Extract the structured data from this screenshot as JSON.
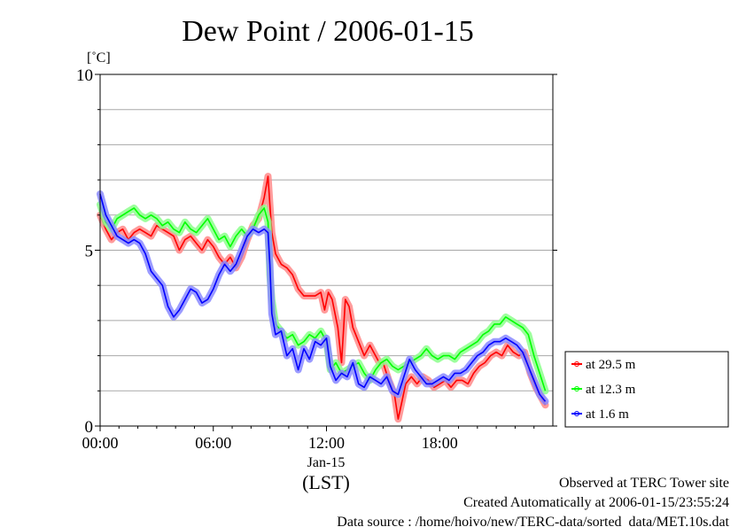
{
  "chart_data": {
    "type": "line",
    "title": "Dew Point / 2006-01-15",
    "ylabel": "[˚C]",
    "xlabel": "(LST)",
    "x_date_label": "Jan-15",
    "ylim": [
      0,
      10
    ],
    "yticks": [
      "0",
      "5",
      "10"
    ],
    "xlim": [
      0,
      24
    ],
    "xticks": [
      "00:00",
      "06:00",
      "12:00",
      "18:00"
    ],
    "grid": true,
    "legend_position": "bottom-right outside",
    "series": [
      {
        "name": "at 29.5 m",
        "color": "#ff0000",
        "points": [
          [
            0,
            6.0
          ],
          [
            0.3,
            5.6
          ],
          [
            0.6,
            5.3
          ],
          [
            0.9,
            5.5
          ],
          [
            1.2,
            5.6
          ],
          [
            1.5,
            5.3
          ],
          [
            1.8,
            5.5
          ],
          [
            2.1,
            5.6
          ],
          [
            2.4,
            5.5
          ],
          [
            2.7,
            5.4
          ],
          [
            3.0,
            5.7
          ],
          [
            3.3,
            5.6
          ],
          [
            3.6,
            5.5
          ],
          [
            3.9,
            5.4
          ],
          [
            4.2,
            5.0
          ],
          [
            4.5,
            5.3
          ],
          [
            4.8,
            5.4
          ],
          [
            5.1,
            5.2
          ],
          [
            5.4,
            5.0
          ],
          [
            5.7,
            5.3
          ],
          [
            6.0,
            5.1
          ],
          [
            6.3,
            4.8
          ],
          [
            6.6,
            4.6
          ],
          [
            6.9,
            4.8
          ],
          [
            7.2,
            4.5
          ],
          [
            7.5,
            4.8
          ],
          [
            7.8,
            5.3
          ],
          [
            8.1,
            5.7
          ],
          [
            8.4,
            5.9
          ],
          [
            8.7,
            6.5
          ],
          [
            8.9,
            7.1
          ],
          [
            9.0,
            6.3
          ],
          [
            9.1,
            5.5
          ],
          [
            9.3,
            4.9
          ],
          [
            9.6,
            4.6
          ],
          [
            9.9,
            4.5
          ],
          [
            10.2,
            4.3
          ],
          [
            10.5,
            3.9
          ],
          [
            10.8,
            3.7
          ],
          [
            11.1,
            3.7
          ],
          [
            11.4,
            3.7
          ],
          [
            11.7,
            3.8
          ],
          [
            11.9,
            3.3
          ],
          [
            12.1,
            3.8
          ],
          [
            12.3,
            3.6
          ],
          [
            12.6,
            2.8
          ],
          [
            12.8,
            1.8
          ],
          [
            13.0,
            3.6
          ],
          [
            13.2,
            3.4
          ],
          [
            13.4,
            2.8
          ],
          [
            13.7,
            2.4
          ],
          [
            14.0,
            2.0
          ],
          [
            14.3,
            2.3
          ],
          [
            14.5,
            2.1
          ],
          [
            14.8,
            1.8
          ],
          [
            15.0,
            1.8
          ],
          [
            15.3,
            1.3
          ],
          [
            15.6,
            0.9
          ],
          [
            15.8,
            0.2
          ],
          [
            16.0,
            0.7
          ],
          [
            16.2,
            1.2
          ],
          [
            16.5,
            1.4
          ],
          [
            16.8,
            1.2
          ],
          [
            17.1,
            1.4
          ],
          [
            17.4,
            1.3
          ],
          [
            17.7,
            1.1
          ],
          [
            18.0,
            1.2
          ],
          [
            18.3,
            1.3
          ],
          [
            18.6,
            1.1
          ],
          [
            18.9,
            1.3
          ],
          [
            19.2,
            1.3
          ],
          [
            19.5,
            1.2
          ],
          [
            19.8,
            1.5
          ],
          [
            20.1,
            1.7
          ],
          [
            20.4,
            1.8
          ],
          [
            20.7,
            2.0
          ],
          [
            21.0,
            2.1
          ],
          [
            21.3,
            2.0
          ],
          [
            21.6,
            2.3
          ],
          [
            21.9,
            2.1
          ],
          [
            22.2,
            2.0
          ],
          [
            22.5,
            2.1
          ],
          [
            22.8,
            1.5
          ],
          [
            23.1,
            1.1
          ],
          [
            23.4,
            0.8
          ],
          [
            23.6,
            0.6
          ]
        ]
      },
      {
        "name": "at 12.3 m",
        "color": "#00ff00",
        "points": [
          [
            0,
            6.3
          ],
          [
            0.3,
            5.8
          ],
          [
            0.6,
            5.6
          ],
          [
            0.9,
            5.9
          ],
          [
            1.2,
            6.0
          ],
          [
            1.5,
            6.1
          ],
          [
            1.8,
            6.2
          ],
          [
            2.1,
            6.0
          ],
          [
            2.4,
            5.9
          ],
          [
            2.7,
            6.0
          ],
          [
            3.0,
            5.9
          ],
          [
            3.3,
            5.7
          ],
          [
            3.6,
            5.8
          ],
          [
            3.9,
            5.6
          ],
          [
            4.2,
            5.5
          ],
          [
            4.5,
            5.8
          ],
          [
            4.8,
            5.6
          ],
          [
            5.1,
            5.5
          ],
          [
            5.4,
            5.7
          ],
          [
            5.7,
            5.9
          ],
          [
            6.0,
            5.6
          ],
          [
            6.3,
            5.3
          ],
          [
            6.6,
            5.4
          ],
          [
            6.9,
            5.1
          ],
          [
            7.2,
            5.4
          ],
          [
            7.5,
            5.6
          ],
          [
            7.8,
            5.4
          ],
          [
            8.1,
            5.6
          ],
          [
            8.4,
            6.0
          ],
          [
            8.7,
            6.2
          ],
          [
            8.9,
            5.8
          ],
          [
            9.0,
            4.3
          ],
          [
            9.1,
            3.6
          ],
          [
            9.3,
            2.9
          ],
          [
            9.6,
            2.7
          ],
          [
            9.9,
            2.5
          ],
          [
            10.2,
            2.6
          ],
          [
            10.5,
            2.3
          ],
          [
            10.8,
            2.4
          ],
          [
            11.1,
            2.6
          ],
          [
            11.4,
            2.5
          ],
          [
            11.7,
            2.7
          ],
          [
            12.0,
            2.4
          ],
          [
            12.2,
            1.6
          ],
          [
            12.5,
            1.8
          ],
          [
            12.8,
            1.5
          ],
          [
            13.1,
            1.6
          ],
          [
            13.4,
            1.7
          ],
          [
            13.7,
            1.8
          ],
          [
            14.0,
            1.5
          ],
          [
            14.3,
            1.3
          ],
          [
            14.6,
            1.6
          ],
          [
            14.9,
            1.8
          ],
          [
            15.2,
            1.9
          ],
          [
            15.5,
            1.7
          ],
          [
            15.8,
            1.6
          ],
          [
            16.1,
            1.7
          ],
          [
            16.4,
            1.8
          ],
          [
            16.7,
            1.9
          ],
          [
            17.0,
            2.0
          ],
          [
            17.3,
            2.2
          ],
          [
            17.6,
            2.0
          ],
          [
            17.9,
            1.9
          ],
          [
            18.2,
            2.0
          ],
          [
            18.5,
            2.0
          ],
          [
            18.8,
            1.9
          ],
          [
            19.1,
            2.1
          ],
          [
            19.4,
            2.2
          ],
          [
            19.7,
            2.3
          ],
          [
            20.0,
            2.4
          ],
          [
            20.3,
            2.6
          ],
          [
            20.6,
            2.7
          ],
          [
            20.9,
            2.9
          ],
          [
            21.2,
            2.9
          ],
          [
            21.5,
            3.1
          ],
          [
            21.8,
            3.0
          ],
          [
            22.1,
            2.9
          ],
          [
            22.4,
            2.8
          ],
          [
            22.7,
            2.6
          ],
          [
            23.0,
            2.0
          ],
          [
            23.3,
            1.5
          ],
          [
            23.6,
            1.0
          ]
        ]
      },
      {
        "name": "at 1.6 m",
        "color": "#0000ff",
        "points": [
          [
            0,
            6.6
          ],
          [
            0.3,
            6.0
          ],
          [
            0.6,
            5.7
          ],
          [
            0.9,
            5.4
          ],
          [
            1.2,
            5.3
          ],
          [
            1.5,
            5.2
          ],
          [
            1.8,
            5.3
          ],
          [
            2.1,
            5.2
          ],
          [
            2.4,
            4.9
          ],
          [
            2.7,
            4.4
          ],
          [
            3.0,
            4.2
          ],
          [
            3.3,
            4.0
          ],
          [
            3.6,
            3.4
          ],
          [
            3.9,
            3.1
          ],
          [
            4.2,
            3.3
          ],
          [
            4.5,
            3.6
          ],
          [
            4.8,
            3.9
          ],
          [
            5.1,
            3.8
          ],
          [
            5.4,
            3.5
          ],
          [
            5.7,
            3.6
          ],
          [
            6.0,
            3.9
          ],
          [
            6.3,
            4.3
          ],
          [
            6.6,
            4.6
          ],
          [
            6.9,
            4.4
          ],
          [
            7.2,
            4.6
          ],
          [
            7.5,
            5.0
          ],
          [
            7.8,
            5.4
          ],
          [
            8.1,
            5.6
          ],
          [
            8.4,
            5.5
          ],
          [
            8.7,
            5.6
          ],
          [
            8.9,
            5.5
          ],
          [
            9.0,
            4.6
          ],
          [
            9.1,
            3.2
          ],
          [
            9.3,
            2.6
          ],
          [
            9.6,
            2.7
          ],
          [
            9.9,
            2.0
          ],
          [
            10.2,
            2.2
          ],
          [
            10.5,
            1.6
          ],
          [
            10.8,
            2.2
          ],
          [
            11.1,
            1.9
          ],
          [
            11.4,
            2.4
          ],
          [
            11.7,
            2.3
          ],
          [
            12.0,
            2.5
          ],
          [
            12.2,
            1.7
          ],
          [
            12.5,
            1.3
          ],
          [
            12.8,
            1.5
          ],
          [
            13.1,
            1.4
          ],
          [
            13.4,
            1.8
          ],
          [
            13.7,
            1.2
          ],
          [
            14.0,
            1.1
          ],
          [
            14.3,
            1.4
          ],
          [
            14.6,
            1.3
          ],
          [
            14.9,
            1.2
          ],
          [
            15.2,
            1.4
          ],
          [
            15.5,
            1.0
          ],
          [
            15.8,
            0.9
          ],
          [
            16.1,
            1.4
          ],
          [
            16.4,
            1.9
          ],
          [
            16.7,
            1.6
          ],
          [
            17.0,
            1.4
          ],
          [
            17.3,
            1.2
          ],
          [
            17.6,
            1.2
          ],
          [
            17.9,
            1.3
          ],
          [
            18.2,
            1.4
          ],
          [
            18.5,
            1.3
          ],
          [
            18.8,
            1.5
          ],
          [
            19.1,
            1.5
          ],
          [
            19.4,
            1.6
          ],
          [
            19.7,
            1.8
          ],
          [
            20.0,
            2.0
          ],
          [
            20.3,
            2.1
          ],
          [
            20.6,
            2.3
          ],
          [
            20.9,
            2.4
          ],
          [
            21.2,
            2.4
          ],
          [
            21.5,
            2.5
          ],
          [
            21.8,
            2.4
          ],
          [
            22.1,
            2.3
          ],
          [
            22.4,
            2.1
          ],
          [
            22.7,
            1.7
          ],
          [
            23.0,
            1.3
          ],
          [
            23.3,
            0.9
          ],
          [
            23.6,
            0.7
          ]
        ]
      }
    ]
  },
  "footer": {
    "line1": "Observed at TERC Tower site",
    "line2": "Created Automatically at 2006-01-15/23:55:24",
    "line3": "Data source : /home/hoivo/new/TERC-data/sorted_data/MET.10s.dat"
  }
}
